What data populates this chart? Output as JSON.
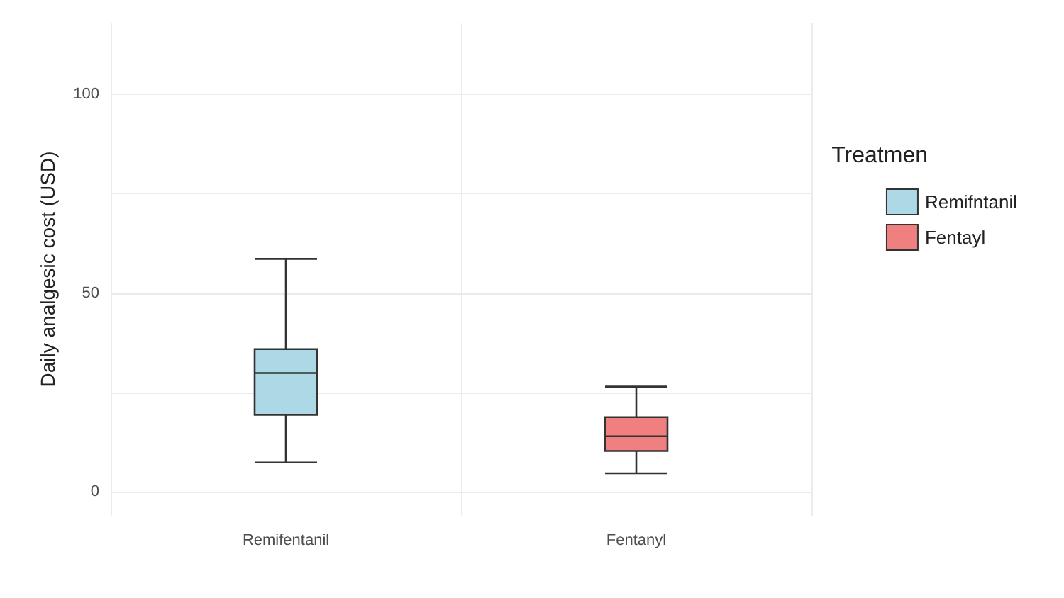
{
  "chart_data": {
    "type": "box",
    "ylabel": "Daily analgesic cost (USD)",
    "legend_title": "Treatmen",
    "categories": [
      "Remifentanil",
      "Fentanyl"
    ],
    "series": [
      {
        "name": "Remifntanil",
        "color": "#add8e6",
        "boxes": [
          {
            "low": 7.4,
            "q1": 19.4,
            "median": 29.9,
            "q3": 35.9,
            "high": 58.6
          },
          null
        ]
      },
      {
        "name": "Fentayl",
        "color": "#f08080",
        "boxes": [
          null,
          {
            "low": 4.7,
            "q1": 10.3,
            "median": 14,
            "q3": 18.8,
            "high": 26.5
          }
        ]
      }
    ],
    "ylim": [
      -6,
      118
    ],
    "yticks": [
      0,
      {
        "value": 25,
        "label": null
      },
      50,
      {
        "value": 75,
        "label": null
      },
      100
    ],
    "grid": true,
    "legend": "right"
  }
}
